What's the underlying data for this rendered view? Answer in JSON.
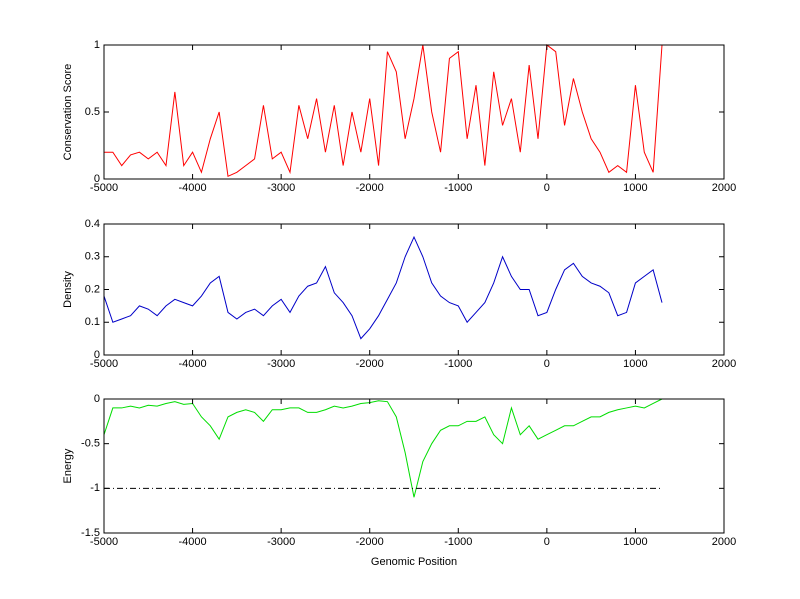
{
  "chart_data": [
    {
      "type": "line",
      "ylabel": "Conservation Score",
      "color": "#ff0000",
      "x": [
        -5000,
        -4900,
        -4800,
        -4700,
        -4600,
        -4500,
        -4400,
        -4300,
        -4200,
        -4100,
        -4000,
        -3900,
        -3800,
        -3700,
        -3600,
        -3500,
        -3400,
        -3300,
        -3200,
        -3100,
        -3000,
        -2900,
        -2800,
        -2700,
        -2600,
        -2500,
        -2400,
        -2300,
        -2200,
        -2100,
        -2000,
        -1900,
        -1800,
        -1700,
        -1600,
        -1500,
        -1400,
        -1300,
        -1200,
        -1100,
        -1000,
        -900,
        -800,
        -700,
        -600,
        -500,
        -400,
        -300,
        -200,
        -100,
        0,
        100,
        200,
        300,
        400,
        500,
        600,
        700,
        800,
        900,
        1000,
        1100,
        1200,
        1300
      ],
      "values": [
        0.2,
        0.2,
        0.1,
        0.18,
        0.2,
        0.15,
        0.2,
        0.1,
        0.65,
        0.1,
        0.2,
        0.05,
        0.3,
        0.5,
        0.02,
        0.05,
        0.1,
        0.15,
        0.55,
        0.15,
        0.2,
        0.05,
        0.55,
        0.3,
        0.6,
        0.2,
        0.55,
        0.1,
        0.5,
        0.2,
        0.6,
        0.1,
        0.95,
        0.8,
        0.3,
        0.6,
        1.0,
        0.5,
        0.2,
        0.9,
        0.95,
        0.3,
        0.7,
        0.1,
        0.8,
        0.4,
        0.6,
        0.2,
        0.85,
        0.3,
        1.0,
        0.95,
        0.4,
        0.75,
        0.5,
        0.3,
        0.2,
        0.05,
        0.1,
        0.05,
        0.7,
        0.2,
        0.05,
        1.0
      ],
      "xlim": [
        -5000,
        2000
      ],
      "xticks": [
        -5000,
        -4000,
        -3000,
        -2000,
        -1000,
        0,
        1000,
        2000
      ],
      "ylim": [
        0,
        1
      ],
      "yticks": [
        0,
        0.5,
        1
      ]
    },
    {
      "type": "line",
      "ylabel": "Density",
      "color": "#0000c8",
      "x": [
        -5000,
        -4900,
        -4800,
        -4700,
        -4600,
        -4500,
        -4400,
        -4300,
        -4200,
        -4100,
        -4000,
        -3900,
        -3800,
        -3700,
        -3600,
        -3500,
        -3400,
        -3300,
        -3200,
        -3100,
        -3000,
        -2900,
        -2800,
        -2700,
        -2600,
        -2500,
        -2400,
        -2300,
        -2200,
        -2100,
        -2000,
        -1900,
        -1800,
        -1700,
        -1600,
        -1500,
        -1400,
        -1300,
        -1200,
        -1100,
        -1000,
        -900,
        -800,
        -700,
        -600,
        -500,
        -400,
        -300,
        -200,
        -100,
        0,
        100,
        200,
        300,
        400,
        500,
        600,
        700,
        800,
        900,
        1000,
        1100,
        1200,
        1300
      ],
      "values": [
        0.18,
        0.1,
        0.11,
        0.12,
        0.15,
        0.14,
        0.12,
        0.15,
        0.17,
        0.16,
        0.15,
        0.18,
        0.22,
        0.24,
        0.13,
        0.11,
        0.13,
        0.14,
        0.12,
        0.15,
        0.17,
        0.13,
        0.18,
        0.21,
        0.22,
        0.27,
        0.19,
        0.16,
        0.12,
        0.05,
        0.08,
        0.12,
        0.17,
        0.22,
        0.3,
        0.36,
        0.3,
        0.22,
        0.18,
        0.16,
        0.15,
        0.1,
        0.13,
        0.16,
        0.22,
        0.3,
        0.24,
        0.2,
        0.2,
        0.12,
        0.13,
        0.2,
        0.26,
        0.28,
        0.24,
        0.22,
        0.21,
        0.19,
        0.12,
        0.13,
        0.22,
        0.24,
        0.26,
        0.16
      ],
      "xlim": [
        -5000,
        2000
      ],
      "xticks": [
        -5000,
        -4000,
        -3000,
        -2000,
        -1000,
        0,
        1000,
        2000
      ],
      "ylim": [
        0,
        0.4
      ],
      "yticks": [
        0,
        0.1,
        0.2,
        0.3,
        0.4
      ]
    },
    {
      "type": "line",
      "ylabel": "Energy",
      "xlabel": "Genomic Position",
      "color": "#00dd00",
      "x": [
        -5000,
        -4900,
        -4800,
        -4700,
        -4600,
        -4500,
        -4400,
        -4300,
        -4200,
        -4100,
        -4000,
        -3900,
        -3800,
        -3700,
        -3600,
        -3500,
        -3400,
        -3300,
        -3200,
        -3100,
        -3000,
        -2900,
        -2800,
        -2700,
        -2600,
        -2500,
        -2400,
        -2300,
        -2200,
        -2100,
        -2000,
        -1900,
        -1800,
        -1700,
        -1600,
        -1500,
        -1400,
        -1300,
        -1200,
        -1100,
        -1000,
        -900,
        -800,
        -700,
        -600,
        -500,
        -400,
        -300,
        -200,
        -100,
        0,
        100,
        200,
        300,
        400,
        500,
        600,
        700,
        800,
        900,
        1000,
        1100,
        1200,
        1300
      ],
      "values": [
        -0.4,
        -0.1,
        -0.1,
        -0.08,
        -0.1,
        -0.07,
        -0.08,
        -0.05,
        -0.03,
        -0.06,
        -0.05,
        -0.2,
        -0.3,
        -0.45,
        -0.2,
        -0.15,
        -0.12,
        -0.15,
        -0.25,
        -0.12,
        -0.12,
        -0.1,
        -0.1,
        -0.15,
        -0.15,
        -0.12,
        -0.08,
        -0.1,
        -0.08,
        -0.05,
        -0.04,
        -0.02,
        -0.03,
        -0.2,
        -0.6,
        -1.1,
        -0.7,
        -0.5,
        -0.35,
        -0.3,
        -0.3,
        -0.25,
        -0.25,
        -0.2,
        -0.4,
        -0.5,
        -0.1,
        -0.4,
        -0.3,
        -0.45,
        -0.4,
        -0.35,
        -0.3,
        -0.3,
        -0.25,
        -0.2,
        -0.2,
        -0.15,
        -0.12,
        -0.1,
        -0.08,
        -0.1,
        -0.05,
        0
      ],
      "reference_line": {
        "y": -1,
        "x": [
          -5000,
          1300
        ],
        "color": "#000000"
      },
      "xlim": [
        -5000,
        2000
      ],
      "xticks": [
        -5000,
        -4000,
        -3000,
        -2000,
        -1000,
        0,
        1000,
        2000
      ],
      "ylim": [
        -1.5,
        0
      ],
      "yticks": [
        -1.5,
        -1,
        -0.5,
        0
      ]
    }
  ]
}
